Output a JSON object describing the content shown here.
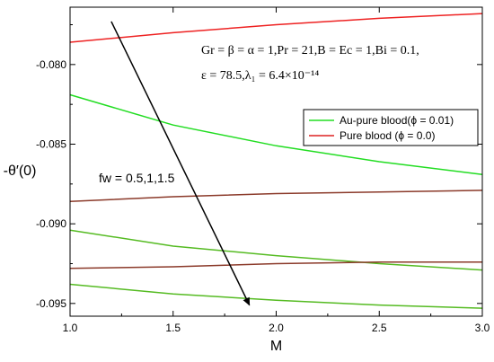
{
  "chart_data": {
    "type": "line",
    "xlabel": "M",
    "ylabel": "-θ′(0)",
    "xlim": [
      1.0,
      3.0
    ],
    "ylim": [
      -0.0958,
      -0.0764
    ],
    "xticks": [
      "1.0",
      "1.5",
      "2.0",
      "2.5",
      "3.0"
    ],
    "xtick_values": [
      1.0,
      1.5,
      2.0,
      2.5,
      3.0
    ],
    "yticks": [
      "-0.080",
      "-0.085",
      "-0.090",
      "-0.095"
    ],
    "ytick_values": [
      -0.08,
      -0.085,
      -0.09,
      -0.095
    ],
    "grid": false,
    "legend_position": "center-right",
    "annotations": {
      "params_line1": "Gr = β = α = 1,Pr = 21,B = Ec = 1,Bi = 0.1,",
      "params_line2": "ε = 78.5,λ₁ = 6.4×10⁻¹⁴",
      "arrow_label": "fw = 0.5,1,1.5"
    },
    "legend": [
      {
        "label": "Au-pure blood(ϕ = 0.01)",
        "color": "#22dd22"
      },
      {
        "label": "Pure blood (ϕ = 0.0)",
        "color": "#dd2222"
      }
    ],
    "series": [
      {
        "color": "#ee2222",
        "x": [
          1.0,
          1.5,
          2.0,
          2.5,
          3.0
        ],
        "values": [
          -0.0786,
          -0.078,
          -0.0775,
          -0.0771,
          -0.0768
        ]
      },
      {
        "color": "#22dd22",
        "x": [
          1.0,
          1.5,
          2.0,
          2.5,
          3.0
        ],
        "values": [
          -0.0819,
          -0.0838,
          -0.0851,
          -0.0861,
          -0.0869
        ]
      },
      {
        "color": "#8b3a2a",
        "x": [
          1.0,
          1.5,
          2.0,
          2.5,
          3.0
        ],
        "values": [
          -0.0886,
          -0.0883,
          -0.0881,
          -0.088,
          -0.0879
        ]
      },
      {
        "color": "#55bb22",
        "x": [
          1.0,
          1.5,
          2.0,
          2.5,
          3.0
        ],
        "values": [
          -0.0904,
          -0.0914,
          -0.092,
          -0.0925,
          -0.0929
        ]
      },
      {
        "color": "#8b3a2a",
        "x": [
          1.0,
          1.5,
          2.0,
          2.5,
          3.0
        ],
        "values": [
          -0.0928,
          -0.0927,
          -0.0925,
          -0.0924,
          -0.0924
        ]
      },
      {
        "color": "#55bb22",
        "x": [
          1.0,
          1.5,
          2.0,
          2.5,
          3.0
        ],
        "values": [
          -0.0938,
          -0.0944,
          -0.0948,
          -0.0951,
          -0.0953
        ]
      }
    ],
    "arrow": {
      "from": [
        1.2,
        -0.0773
      ],
      "to": [
        1.87,
        -0.0951
      ],
      "color": "#000000"
    }
  }
}
